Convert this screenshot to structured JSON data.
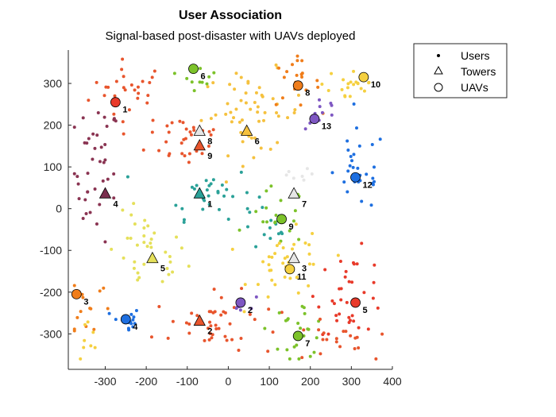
{
  "chart_data": {
    "type": "scatter",
    "title": "User Association",
    "subtitle": "Signal-based post-disaster with UAVs deployed",
    "xlabel": "",
    "ylabel": "",
    "xlim": [
      -390,
      400
    ],
    "ylim": [
      -385,
      380
    ],
    "xticks": [
      -300,
      -200,
      -100,
      0,
      100,
      200,
      300,
      400
    ],
    "yticks": [
      -300,
      -200,
      -100,
      0,
      100,
      200,
      300
    ],
    "legend": {
      "position": "top-right-outside",
      "entries": [
        {
          "label": "Users",
          "marker": "dot"
        },
        {
          "label": "Towers",
          "marker": "triangle"
        },
        {
          "label": "UAVs",
          "marker": "circle"
        }
      ]
    },
    "towers": [
      {
        "label": "1",
        "x": -70,
        "y": 35,
        "color": "#2aa198"
      },
      {
        "label": "2",
        "x": -70,
        "y": -270,
        "color": "#e8552d"
      },
      {
        "label": "3",
        "x": 160,
        "y": -120,
        "color": "#e6e6e6"
      },
      {
        "label": "4",
        "x": -300,
        "y": 35,
        "color": "#7a2e4e"
      },
      {
        "label": "5",
        "x": -185,
        "y": -120,
        "color": "#e5e05a"
      },
      {
        "label": "6",
        "x": 45,
        "y": 185,
        "color": "#f5c13e"
      },
      {
        "label": "7",
        "x": 160,
        "y": 35,
        "color": "#e6e6e6"
      },
      {
        "label": "8",
        "x": -70,
        "y": 185,
        "color": "#e6e6e6"
      },
      {
        "label": "9",
        "x": -70,
        "y": 150,
        "color": "#e8552d"
      }
    ],
    "uavs": [
      {
        "label": "1",
        "x": -275,
        "y": 255,
        "color": "#e83a2a"
      },
      {
        "label": "2",
        "x": 30,
        "y": -225,
        "color": "#7e57c2"
      },
      {
        "label": "3",
        "x": -370,
        "y": -205,
        "color": "#f07d1a"
      },
      {
        "label": "4",
        "x": -250,
        "y": -265,
        "color": "#1e6fe0"
      },
      {
        "label": "5",
        "x": 310,
        "y": -225,
        "color": "#e83a2a"
      },
      {
        "label": "6",
        "x": -85,
        "y": 335,
        "color": "#7cc22a"
      },
      {
        "label": "7",
        "x": 170,
        "y": -305,
        "color": "#7cc22a"
      },
      {
        "label": "8",
        "x": 170,
        "y": 295,
        "color": "#f07d1a"
      },
      {
        "label": "9",
        "x": 130,
        "y": -25,
        "color": "#7cc22a"
      },
      {
        "label": "10",
        "x": 330,
        "y": 315,
        "color": "#f5d040"
      },
      {
        "label": "11",
        "x": 150,
        "y": -145,
        "color": "#f5d040"
      },
      {
        "label": "12",
        "x": 310,
        "y": 75,
        "color": "#1e6fe0"
      },
      {
        "label": "13",
        "x": 210,
        "y": 215,
        "color": "#7e57c2"
      }
    ],
    "user_clusters": [
      {
        "color": "#e8552d",
        "cx": -240,
        "cy": 280,
        "sx": 70,
        "sy": 55,
        "n": 28
      },
      {
        "color": "#8a3452",
        "cx": -320,
        "cy": 90,
        "sx": 40,
        "sy": 120,
        "n": 40
      },
      {
        "color": "#e5e05a",
        "cx": -200,
        "cy": -110,
        "sx": 70,
        "sy": 70,
        "n": 35
      },
      {
        "color": "#f07d1a",
        "cx": -340,
        "cy": -230,
        "sx": 35,
        "sy": 60,
        "n": 14
      },
      {
        "color": "#1e6fe0",
        "cx": -250,
        "cy": -270,
        "sx": 25,
        "sy": 25,
        "n": 14
      },
      {
        "color": "#e8552d",
        "cx": -100,
        "cy": 170,
        "sx": 70,
        "sy": 50,
        "n": 30
      },
      {
        "color": "#2aa198",
        "cx": -50,
        "cy": 40,
        "sx": 80,
        "sy": 45,
        "n": 30
      },
      {
        "color": "#e8552d",
        "cx": -30,
        "cy": -280,
        "sx": 110,
        "sy": 55,
        "n": 45
      },
      {
        "color": "#7e57c2",
        "cx": 40,
        "cy": -230,
        "sx": 20,
        "sy": 15,
        "n": 6
      },
      {
        "color": "#7cc22a",
        "cx": -70,
        "cy": 320,
        "sx": 30,
        "sy": 25,
        "n": 10
      },
      {
        "color": "#f5c13e",
        "cx": 60,
        "cy": 230,
        "sx": 90,
        "sy": 70,
        "n": 55
      },
      {
        "color": "#f07d1a",
        "cx": 160,
        "cy": 300,
        "sx": 45,
        "sy": 40,
        "n": 20
      },
      {
        "color": "#7e57c2",
        "cx": 230,
        "cy": 230,
        "sx": 30,
        "sy": 30,
        "n": 10
      },
      {
        "color": "#f5d040",
        "cx": 300,
        "cy": 300,
        "sx": 50,
        "sy": 40,
        "n": 22
      },
      {
        "color": "#1e6fe0",
        "cx": 320,
        "cy": 90,
        "sx": 45,
        "sy": 70,
        "n": 30
      },
      {
        "color": "#e6e6e6",
        "cx": 160,
        "cy": 60,
        "sx": 40,
        "sy": 40,
        "n": 8
      },
      {
        "color": "#2aa198",
        "cx": 100,
        "cy": -50,
        "sx": 50,
        "sy": 40,
        "n": 14
      },
      {
        "color": "#7cc22a",
        "cx": 120,
        "cy": -20,
        "sx": 50,
        "sy": 50,
        "n": 18
      },
      {
        "color": "#f5d040",
        "cx": 150,
        "cy": -140,
        "sx": 70,
        "sy": 60,
        "n": 40
      },
      {
        "color": "#e83a2a",
        "cx": 300,
        "cy": -200,
        "sx": 60,
        "sy": 70,
        "n": 35
      },
      {
        "color": "#7cc22a",
        "cx": 170,
        "cy": -290,
        "sx": 50,
        "sy": 50,
        "n": 25
      },
      {
        "color": "#e8552d",
        "cx": 260,
        "cy": -320,
        "sx": 60,
        "sy": 35,
        "n": 18
      },
      {
        "color": "#f5d040",
        "cx": -340,
        "cy": -320,
        "sx": 25,
        "sy": 40,
        "n": 8
      }
    ]
  }
}
